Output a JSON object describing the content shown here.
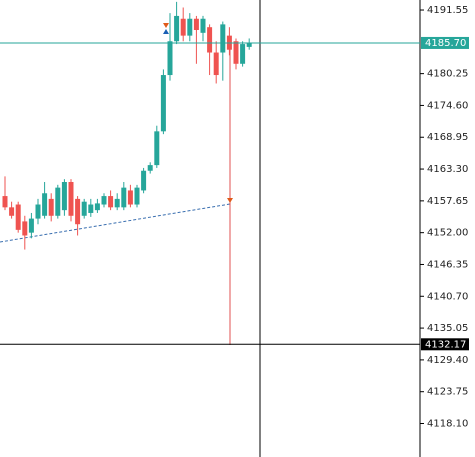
{
  "chart_data": {
    "type": "candlestick",
    "open": [
      4158.5,
      4156.5,
      4157,
      4154,
      4152,
      4154.5,
      4155,
      4158,
      4155,
      4156,
      4161,
      4158,
      4155,
      4155.5,
      4156,
      4157,
      4158.5,
      4156.5,
      4156.5,
      4159.5,
      4157,
      4159.5,
      4163,
      4164,
      4170,
      4180,
      4186,
      4190,
      4187,
      4190,
      4187.5,
      4188.5,
      4184,
      4184,
      4187,
      4186,
      4182,
      4185
    ],
    "high": [
      4162,
      4157.5,
      4157.5,
      4155,
      4155.5,
      4158,
      4161,
      4159,
      4160.5,
      4161.5,
      4161.5,
      4158.5,
      4158,
      4158,
      4158,
      4159,
      4159.5,
      4159,
      4161,
      4160.5,
      4160.5,
      4163.5,
      4164.5,
      4171,
      4181,
      4191,
      4193,
      4192,
      4191,
      4190.5,
      4190.5,
      4189,
      4186,
      4189.5,
      4188.5,
      4186.5,
      4186,
      4186.5
    ],
    "low": [
      4156,
      4154.5,
      4152,
      4149,
      4151,
      4153.5,
      4154.5,
      4154,
      4154.5,
      4155,
      4154,
      4151.5,
      4154.5,
      4154.8,
      4155.5,
      4156.5,
      4156,
      4156,
      4156,
      4156.5,
      4156.5,
      4159,
      4162.5,
      4163.5,
      4169.5,
      4179,
      4185.5,
      4186,
      4186,
      4182,
      4186,
      4180,
      4178.5,
      4179,
      4183.5,
      4181,
      4181.5,
      4184.5
    ],
    "close": [
      4156.5,
      4155,
      4152.5,
      4151.5,
      4154.5,
      4157,
      4159,
      4155,
      4160,
      4161,
      4155,
      4153.5,
      4157.5,
      4157,
      4157.2,
      4158.5,
      4156.5,
      4158,
      4160,
      4157,
      4160,
      4163,
      4164,
      4170,
      4180,
      4186,
      4190.5,
      4187,
      4190,
      4188,
      4190,
      4184,
      4180,
      4189,
      4184.5,
      4182,
      4185.5,
      4185.7
    ],
    "up_color": "#26a69a",
    "down_color": "#ef5350",
    "ylim": [
      4112.15,
      4193.33
    ],
    "yticks": [
      {
        "value": 4191.55,
        "label": "4191.55"
      },
      {
        "value": 4180.25,
        "label": "4180.25"
      },
      {
        "value": 4174.6,
        "label": "4174.60"
      },
      {
        "value": 4168.95,
        "label": "4168.95"
      },
      {
        "value": 4163.3,
        "label": "4163.30"
      },
      {
        "value": 4157.65,
        "label": "4157.65"
      },
      {
        "value": 4152,
        "label": "4152.00"
      },
      {
        "value": 4146.35,
        "label": "4146.35"
      },
      {
        "value": 4140.7,
        "label": "4140.70"
      },
      {
        "value": 4135.05,
        "label": "4135.05"
      },
      {
        "value": 4129.4,
        "label": "4129.40"
      },
      {
        "value": 4123.75,
        "label": "4123.75"
      },
      {
        "value": 4118.1,
        "label": "4118.10"
      }
    ],
    "current_price": {
      "value": 4185.7,
      "label": "4185.70"
    },
    "crosshair_price": {
      "value": 4132.17,
      "label": "4132.17"
    }
  }
}
